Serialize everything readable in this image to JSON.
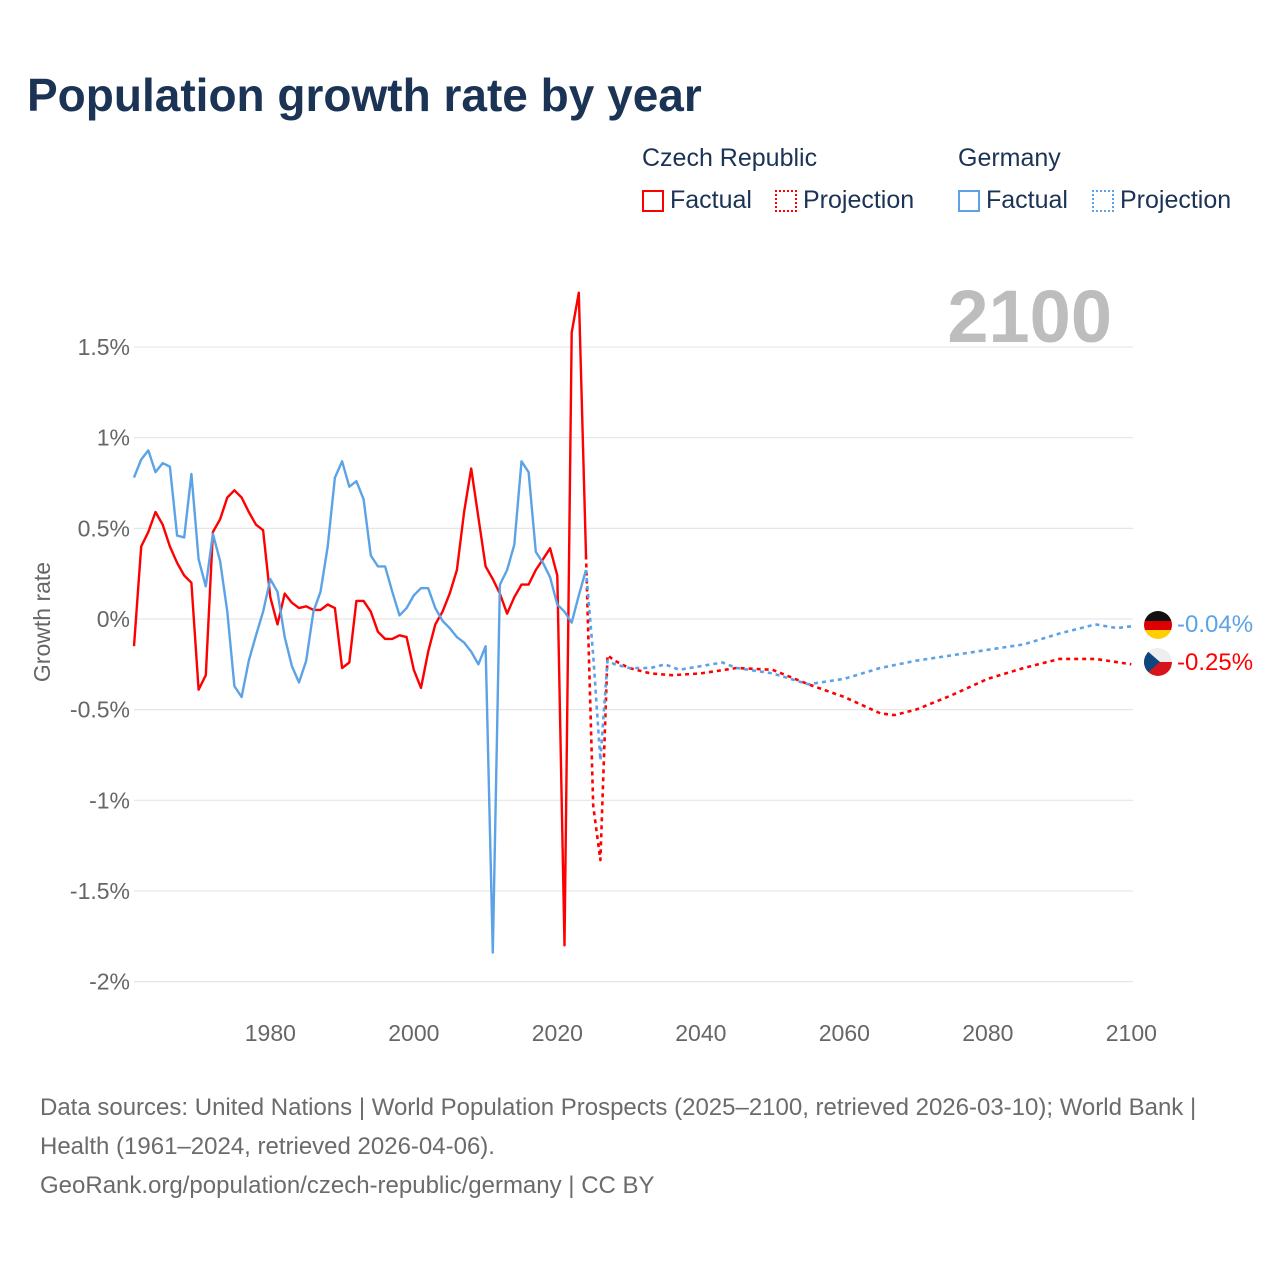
{
  "title": "Population growth rate by year",
  "legend": {
    "groups": [
      {
        "name": "Czech Republic",
        "color": "#ff0000",
        "factual": "Factual",
        "projection": "Projection"
      },
      {
        "name": "Germany",
        "color": "#5ba3e6",
        "factual": "Factual",
        "projection": "Projection"
      }
    ]
  },
  "year_display": "2100",
  "end_labels": {
    "germany": "-0.04%",
    "czech": "-0.25%"
  },
  "footer": {
    "sources": "Data sources: United Nations | World Population Prospects (2025–2100, retrieved 2026-03-10); World Bank | Health (1961–2024, retrieved 2026-04-06).",
    "credit": "GeoRank.org/population/czech-republic/germany | CC BY"
  },
  "chart_data": {
    "type": "line",
    "title": "Population growth rate by year",
    "xlabel": "",
    "ylabel": "Growth rate",
    "xlim": [
      1961,
      2100
    ],
    "ylim": [
      -2,
      1.8
    ],
    "x_ticks": [
      1980,
      2000,
      2020,
      2040,
      2060,
      2080,
      2100
    ],
    "y_ticks": [
      1.5,
      1,
      0.5,
      0,
      -0.5,
      -1,
      -1.5,
      -2
    ],
    "y_tick_labels": [
      "1.5%",
      "1%",
      "0.5%",
      "0%",
      "-0.5%",
      "-1%",
      "-1.5%",
      "-2%"
    ],
    "grid": true,
    "series": [
      {
        "name": "Czech Republic",
        "kind": "factual",
        "color": "#ff0000",
        "x": [
          1961,
          1962,
          1963,
          1964,
          1965,
          1966,
          1967,
          1968,
          1969,
          1970,
          1971,
          1972,
          1973,
          1974,
          1975,
          1976,
          1977,
          1978,
          1979,
          1980,
          1981,
          1982,
          1983,
          1984,
          1985,
          1986,
          1987,
          1988,
          1989,
          1990,
          1991,
          1992,
          1993,
          1994,
          1995,
          1996,
          1997,
          1998,
          1999,
          2000,
          2001,
          2002,
          2003,
          2004,
          2005,
          2006,
          2007,
          2008,
          2009,
          2010,
          2011,
          2012,
          2013,
          2014,
          2015,
          2016,
          2017,
          2018,
          2019,
          2020,
          2021,
          2022,
          2023,
          2024
        ],
        "y": [
          -0.15,
          0.4,
          0.48,
          0.59,
          0.52,
          0.4,
          0.31,
          0.24,
          0.2,
          -0.39,
          -0.31,
          0.48,
          0.55,
          0.67,
          0.71,
          0.67,
          0.59,
          0.52,
          0.49,
          0.12,
          -0.03,
          0.14,
          0.09,
          0.06,
          0.07,
          0.05,
          0.05,
          0.08,
          0.06,
          -0.27,
          -0.24,
          0.1,
          0.1,
          0.04,
          -0.07,
          -0.11,
          -0.11,
          -0.09,
          -0.1,
          -0.28,
          -0.38,
          -0.18,
          -0.03,
          0.04,
          0.14,
          0.27,
          0.59,
          0.83,
          0.56,
          0.29,
          0.22,
          0.14,
          0.03,
          0.12,
          0.19,
          0.19,
          0.27,
          0.33,
          0.39,
          0.24,
          -1.8,
          1.58,
          1.8,
          0.35
        ]
      },
      {
        "name": "Czech Republic",
        "kind": "projection",
        "color": "#ff0000",
        "x": [
          2024,
          2025,
          2026,
          2027,
          2028,
          2030,
          2033,
          2036,
          2040,
          2045,
          2050,
          2055,
          2060,
          2065,
          2067,
          2070,
          2075,
          2080,
          2085,
          2090,
          2095,
          2100
        ],
        "y": [
          0.35,
          -1.03,
          -1.33,
          -0.2,
          -0.23,
          -0.27,
          -0.3,
          -0.31,
          -0.3,
          -0.27,
          -0.28,
          -0.36,
          -0.43,
          -0.52,
          -0.53,
          -0.5,
          -0.42,
          -0.33,
          -0.27,
          -0.22,
          -0.22,
          -0.25
        ]
      },
      {
        "name": "Germany",
        "kind": "factual",
        "color": "#5ba3e6",
        "x": [
          1961,
          1962,
          1963,
          1964,
          1965,
          1966,
          1967,
          1968,
          1969,
          1970,
          1971,
          1972,
          1973,
          1974,
          1975,
          1976,
          1977,
          1978,
          1979,
          1980,
          1981,
          1982,
          1983,
          1984,
          1985,
          1986,
          1987,
          1988,
          1989,
          1990,
          1991,
          1992,
          1993,
          1994,
          1995,
          1996,
          1997,
          1998,
          1999,
          2000,
          2001,
          2002,
          2003,
          2004,
          2005,
          2006,
          2007,
          2008,
          2009,
          2010,
          2011,
          2012,
          2013,
          2014,
          2015,
          2016,
          2017,
          2018,
          2019,
          2020,
          2021,
          2022,
          2023,
          2024
        ],
        "y": [
          0.78,
          0.88,
          0.93,
          0.81,
          0.86,
          0.84,
          0.46,
          0.45,
          0.8,
          0.33,
          0.18,
          0.47,
          0.32,
          0.04,
          -0.37,
          -0.43,
          -0.23,
          -0.09,
          0.04,
          0.22,
          0.15,
          -0.1,
          -0.26,
          -0.35,
          -0.23,
          0.04,
          0.15,
          0.4,
          0.78,
          0.87,
          0.73,
          0.76,
          0.66,
          0.35,
          0.29,
          0.29,
          0.15,
          0.02,
          0.06,
          0.13,
          0.17,
          0.17,
          0.06,
          -0.01,
          -0.05,
          -0.1,
          -0.13,
          -0.18,
          -0.25,
          -0.15,
          -1.84,
          0.19,
          0.27,
          0.41,
          0.87,
          0.81,
          0.37,
          0.31,
          0.23,
          0.08,
          0.04,
          -0.02,
          0.13,
          0.27
        ]
      },
      {
        "name": "Germany",
        "kind": "projection",
        "color": "#5ba3e6",
        "x": [
          2024,
          2025,
          2026,
          2027,
          2028,
          2030,
          2033,
          2035,
          2037,
          2040,
          2043,
          2045,
          2050,
          2055,
          2060,
          2065,
          2070,
          2075,
          2080,
          2085,
          2090,
          2095,
          2098,
          2100
        ],
        "y": [
          0.27,
          -0.2,
          -0.78,
          -0.23,
          -0.25,
          -0.27,
          -0.27,
          -0.25,
          -0.28,
          -0.26,
          -0.24,
          -0.27,
          -0.3,
          -0.36,
          -0.33,
          -0.27,
          -0.23,
          -0.2,
          -0.17,
          -0.14,
          -0.08,
          -0.03,
          -0.05,
          -0.04
        ]
      }
    ]
  }
}
